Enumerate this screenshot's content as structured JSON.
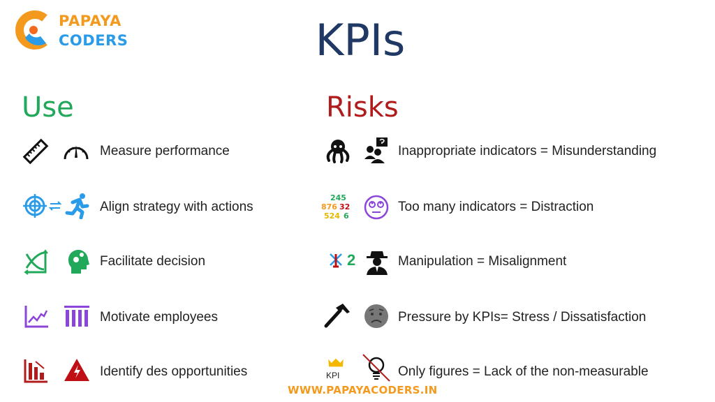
{
  "logo": {
    "line1": "PAPAYA",
    "line2": "CODERS",
    "colors": {
      "orange": "#f39a1e",
      "blue": "#2a9be8"
    }
  },
  "title": "KPIs",
  "use": {
    "heading": "Use",
    "color": "#22a85a",
    "items": [
      {
        "label": "Measure performance",
        "icons": [
          "ruler-icon",
          "gauge-icon"
        ]
      },
      {
        "label": "Align strategy with actions",
        "icons": [
          "target-icon",
          "running-person-icon"
        ]
      },
      {
        "label": "Facilitate decision",
        "icons": [
          "crossing-chart-icon",
          "head-gears-icon"
        ]
      },
      {
        "label": "Motivate employees",
        "icons": [
          "line-chart-up-icon",
          "cheering-group-icon"
        ]
      },
      {
        "label": "Identify des opportunities",
        "icons": [
          "bar-chart-down-icon",
          "warning-icon"
        ]
      }
    ]
  },
  "risks": {
    "heading": "Risks",
    "color": "#b01c1c",
    "items": [
      {
        "label": "Inappropriate indicators = Misunderstanding",
        "icons": [
          "octopus-icon",
          "people-question-icon"
        ]
      },
      {
        "label": "Too many indicators = Distraction",
        "icons": [
          "numbers-jumble-icon",
          "eye-roll-face-icon"
        ]
      },
      {
        "label": "Manipulation = Misalignment",
        "icons": [
          "crossed-one-icon",
          "spy-icon"
        ],
        "icon_text": "2"
      },
      {
        "label": "Pressure by KPIs= Stress / Dissatisfaction",
        "icons": [
          "hammer-icon",
          "worried-face-icon"
        ]
      },
      {
        "label": "Only figures = Lack of the non-measurable",
        "icons": [
          "crown-kpi-icon",
          "crossed-bulb-icon"
        ],
        "icon_text": "KPI"
      }
    ]
  },
  "numbers_jumble": "245",
  "footer": "WWW.PAPAYACODERS.IN"
}
